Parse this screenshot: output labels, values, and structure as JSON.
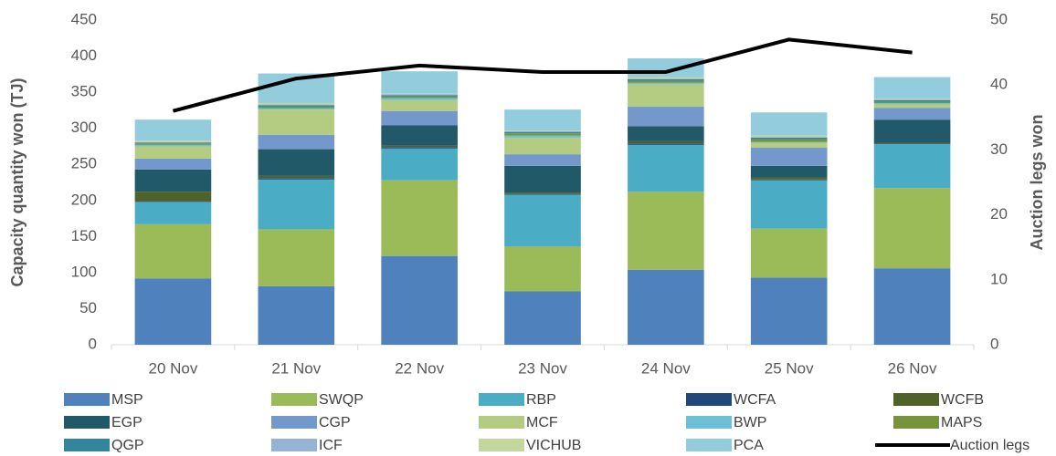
{
  "chart_data": {
    "type": "bar",
    "stacked": true,
    "y_label": "Capacity quantity won (TJ)",
    "y2_label": "Auction legs won",
    "categories": [
      "20 Nov",
      "21 Nov",
      "22 Nov",
      "23 Nov",
      "24 Nov",
      "25 Nov",
      "26 Nov"
    ],
    "ylim": [
      0,
      450
    ],
    "yticks": [
      0,
      50,
      100,
      150,
      200,
      250,
      300,
      350,
      400,
      450
    ],
    "y2lim": [
      0,
      50
    ],
    "y2ticks": [
      0,
      10,
      20,
      30,
      40,
      50
    ],
    "legend": "bottom",
    "series": [
      {
        "name": "MSP",
        "color": "#4f81bd",
        "values": [
          92,
          81,
          123,
          74,
          104,
          93,
          106
        ]
      },
      {
        "name": "SWQP",
        "color": "#9bbb59",
        "values": [
          75,
          79,
          105,
          62,
          108,
          68,
          111
        ]
      },
      {
        "name": "RBP",
        "color": "#4bacc6",
        "values": [
          31,
          69,
          44,
          72,
          65,
          67,
          61
        ]
      },
      {
        "name": "WCFA",
        "color": "#1f497d",
        "values": [
          1,
          2,
          2,
          1,
          2,
          1,
          1
        ]
      },
      {
        "name": "WCFB",
        "color": "#4f6228",
        "values": [
          13,
          3,
          2,
          2,
          3,
          3,
          1
        ]
      },
      {
        "name": "EGP",
        "color": "#215968",
        "values": [
          31,
          37,
          28,
          37,
          21,
          16,
          32
        ]
      },
      {
        "name": "CGP",
        "color": "#7398cc",
        "values": [
          15,
          20,
          20,
          16,
          27,
          25,
          16
        ]
      },
      {
        "name": "MCF",
        "color": "#b3cc82",
        "values": [
          17,
          35,
          15,
          23,
          31,
          7,
          5
        ]
      },
      {
        "name": "BWP",
        "color": "#6ec0d6",
        "values": [
          2,
          2,
          3,
          3,
          2,
          1,
          2
        ]
      },
      {
        "name": "MAPS",
        "color": "#77933c",
        "values": [
          2,
          2,
          2,
          3,
          3,
          4,
          2
        ]
      },
      {
        "name": "QGP",
        "color": "#31859c",
        "values": [
          1,
          2,
          2,
          2,
          2,
          2,
          2
        ]
      },
      {
        "name": "ICF",
        "color": "#95b3d7",
        "values": [
          1,
          1,
          1,
          1,
          1,
          1,
          1
        ]
      },
      {
        "name": "VICHUB",
        "color": "#c3d69b",
        "values": [
          2,
          2,
          1,
          1,
          2,
          2,
          1
        ]
      },
      {
        "name": "PCA",
        "color": "#93cddd",
        "values": [
          29,
          41,
          31,
          29,
          26,
          32,
          30
        ]
      },
      {
        "name": "Auction legs",
        "type": "line",
        "axis": "y2",
        "color": "#000000",
        "values": [
          36,
          41,
          43,
          42,
          42,
          47,
          45
        ]
      }
    ]
  }
}
